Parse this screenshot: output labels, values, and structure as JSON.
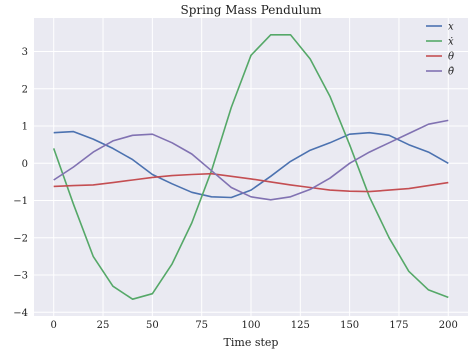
{
  "chart_data": {
    "type": "line",
    "title": "Spring Mass Pendulum",
    "xlabel": "Time step",
    "ylabel": "",
    "xlim": [
      -10,
      210
    ],
    "ylim": [
      -4.1,
      3.9
    ],
    "xticks": [
      0,
      25,
      50,
      75,
      100,
      125,
      150,
      175,
      200
    ],
    "yticks": [
      -4,
      -3,
      -2,
      -1,
      0,
      1,
      2,
      3
    ],
    "grid": true,
    "background": "#eaeaf2",
    "legend_position": "top-right",
    "series": [
      {
        "name": "x",
        "legend_display": "x",
        "color": "#4c72b0",
        "x": [
          0,
          10,
          20,
          30,
          40,
          50,
          60,
          70,
          80,
          90,
          100,
          110,
          120,
          130,
          140,
          150,
          160,
          170,
          180,
          190,
          200
        ],
        "y": [
          0.82,
          0.85,
          0.65,
          0.4,
          0.1,
          -0.3,
          -0.55,
          -0.78,
          -0.9,
          -0.92,
          -0.72,
          -0.35,
          0.05,
          0.35,
          0.55,
          0.78,
          0.82,
          0.75,
          0.5,
          0.3,
          0.0
        ]
      },
      {
        "name": "x dot",
        "legend_display": "ẋ",
        "color": "#55a868",
        "x": [
          0,
          10,
          20,
          30,
          40,
          50,
          60,
          70,
          80,
          90,
          100,
          110,
          120,
          130,
          140,
          150,
          160,
          170,
          180,
          190,
          200
        ],
        "y": [
          0.4,
          -1.1,
          -2.5,
          -3.3,
          -3.65,
          -3.5,
          -2.7,
          -1.6,
          -0.2,
          1.5,
          2.9,
          3.45,
          3.45,
          2.8,
          1.8,
          0.5,
          -0.9,
          -2.0,
          -2.9,
          -3.4,
          -3.6
        ]
      },
      {
        "name": "theta",
        "legend_display": "θ",
        "color": "#c44e52",
        "x": [
          0,
          10,
          20,
          30,
          40,
          50,
          60,
          70,
          80,
          90,
          100,
          110,
          120,
          130,
          140,
          150,
          160,
          170,
          180,
          190,
          200
        ],
        "y": [
          -0.62,
          -0.6,
          -0.58,
          -0.52,
          -0.45,
          -0.38,
          -0.33,
          -0.3,
          -0.28,
          -0.35,
          -0.42,
          -0.5,
          -0.58,
          -0.65,
          -0.72,
          -0.75,
          -0.76,
          -0.72,
          -0.68,
          -0.6,
          -0.52
        ]
      },
      {
        "name": "theta dot",
        "legend_display": "θ̇",
        "color": "#8172b2",
        "x": [
          0,
          10,
          20,
          30,
          40,
          50,
          60,
          70,
          80,
          90,
          100,
          110,
          120,
          130,
          140,
          150,
          160,
          170,
          180,
          190,
          200
        ],
        "y": [
          -0.45,
          -0.1,
          0.3,
          0.6,
          0.75,
          0.78,
          0.55,
          0.25,
          -0.2,
          -0.65,
          -0.9,
          -0.98,
          -0.9,
          -0.7,
          -0.4,
          0.0,
          0.3,
          0.55,
          0.8,
          1.05,
          1.15
        ]
      }
    ]
  }
}
